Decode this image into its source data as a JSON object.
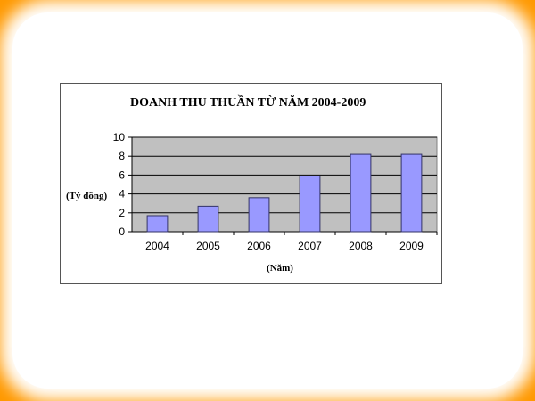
{
  "colors": {
    "frame": "#ff9900",
    "plot_bg": "#c0c0c0",
    "bar": "#9999ff",
    "bar_border": "#333366"
  },
  "chart_data": {
    "type": "bar",
    "title": "DOANH THU THUẦN TỪ NĂM 2004-2009",
    "xlabel": "(Năm)",
    "ylabel": "(Tỷ đồng)",
    "categories": [
      "2004",
      "2005",
      "2006",
      "2007",
      "2008",
      "2009"
    ],
    "values": [
      1.7,
      2.7,
      3.6,
      5.9,
      8.2,
      8.2
    ],
    "ylim": [
      0,
      10
    ],
    "yticks": [
      "0",
      "2",
      "4",
      "6",
      "8",
      "10"
    ],
    "grid": true,
    "legend": "none"
  }
}
